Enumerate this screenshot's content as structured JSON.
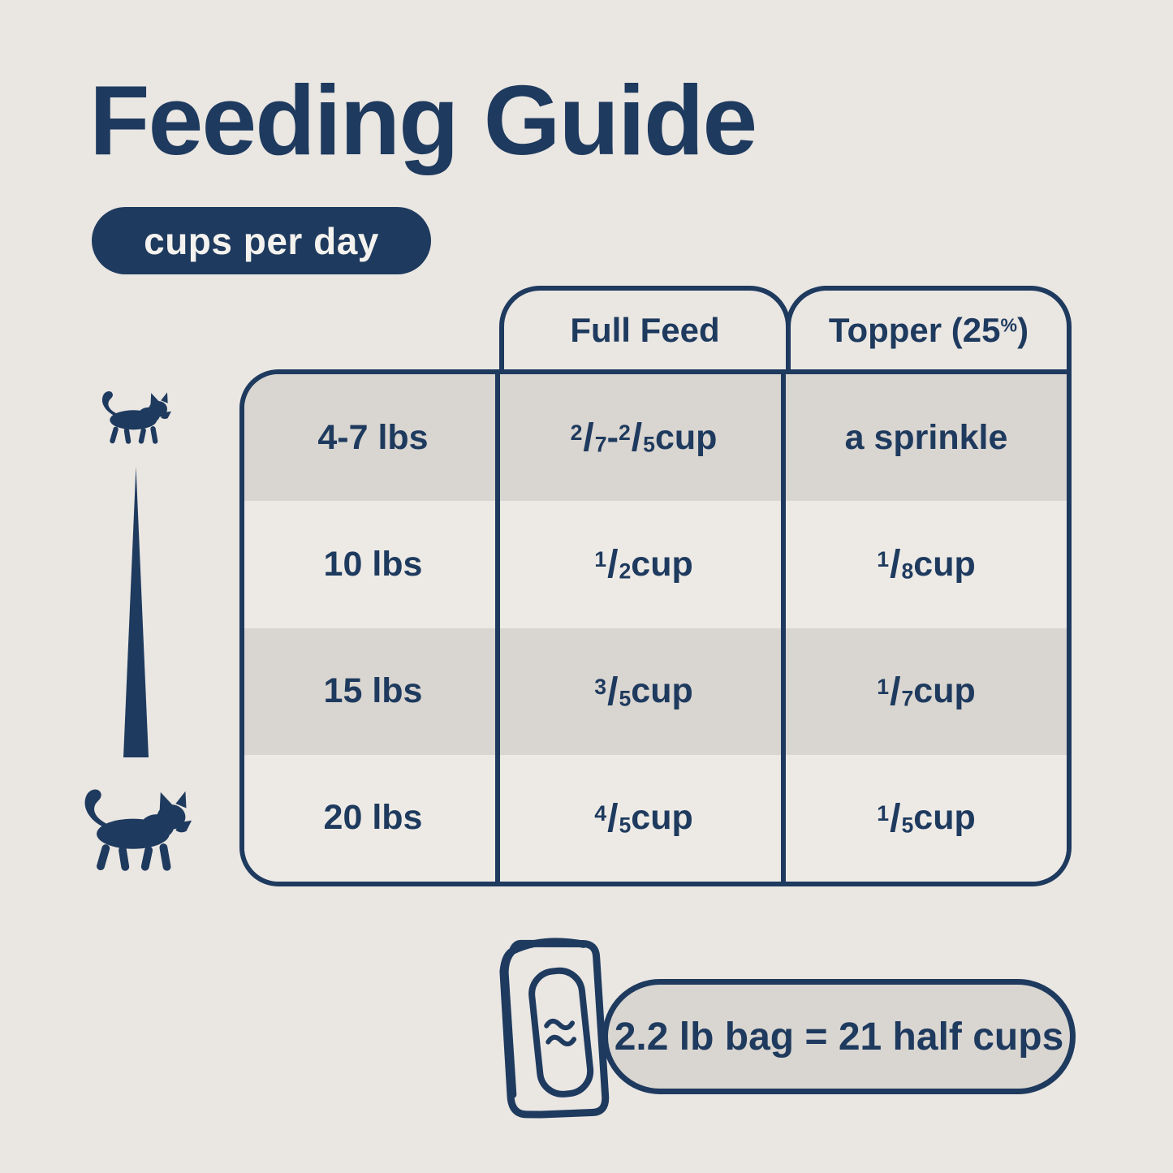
{
  "colors": {
    "background": "#eae6e2",
    "row_light": "#edeae6",
    "row_dark": "#d9d5d0",
    "navy": "#1e3a5e",
    "pill_text": "#f4f2ee"
  },
  "header": {
    "title": "Feeding Guide",
    "subtitle": "cups per day"
  },
  "icons": {
    "small_cat": "walking-cat-silhouette-small",
    "large_cat": "walking-cat-silhouette-large",
    "taper": "size-range-taper-line",
    "bag": "pet-food-bag-outline"
  },
  "table": {
    "column_headers": [
      {
        "tokens": [
          {
            "t": "text",
            "v": "Full Feed"
          }
        ]
      },
      {
        "tokens": [
          {
            "t": "text",
            "v": "Topper (25"
          },
          {
            "t": "sup",
            "v": "%"
          },
          {
            "t": "text",
            "v": ")"
          }
        ]
      }
    ],
    "rows": [
      {
        "weight": "4-7 lbs",
        "full_feed": [
          {
            "t": "frac",
            "n": "2",
            "d": "7"
          },
          {
            "t": "text",
            "v": " - "
          },
          {
            "t": "frac",
            "n": "2",
            "d": "5"
          },
          {
            "t": "text",
            "v": " cup"
          }
        ],
        "topper": [
          {
            "t": "text",
            "v": "a sprinkle"
          }
        ]
      },
      {
        "weight": "10 lbs",
        "full_feed": [
          {
            "t": "frac",
            "n": "1",
            "d": "2"
          },
          {
            "t": "text",
            "v": " cup"
          }
        ],
        "topper": [
          {
            "t": "frac",
            "n": "1",
            "d": "8"
          },
          {
            "t": "text",
            "v": " cup"
          }
        ]
      },
      {
        "weight": "15 lbs",
        "full_feed": [
          {
            "t": "frac",
            "n": "3",
            "d": "5"
          },
          {
            "t": "text",
            "v": " cup"
          }
        ],
        "topper": [
          {
            "t": "frac",
            "n": "1",
            "d": "7"
          },
          {
            "t": "text",
            "v": " cup"
          }
        ]
      },
      {
        "weight": "20 lbs",
        "full_feed": [
          {
            "t": "frac",
            "n": "4",
            "d": "5"
          },
          {
            "t": "text",
            "v": " cup"
          }
        ],
        "topper": [
          {
            "t": "frac",
            "n": "1",
            "d": "5"
          },
          {
            "t": "text",
            "v": " cup"
          }
        ]
      }
    ]
  },
  "footer": {
    "note": "2.2 lb bag = 21 half cups"
  }
}
